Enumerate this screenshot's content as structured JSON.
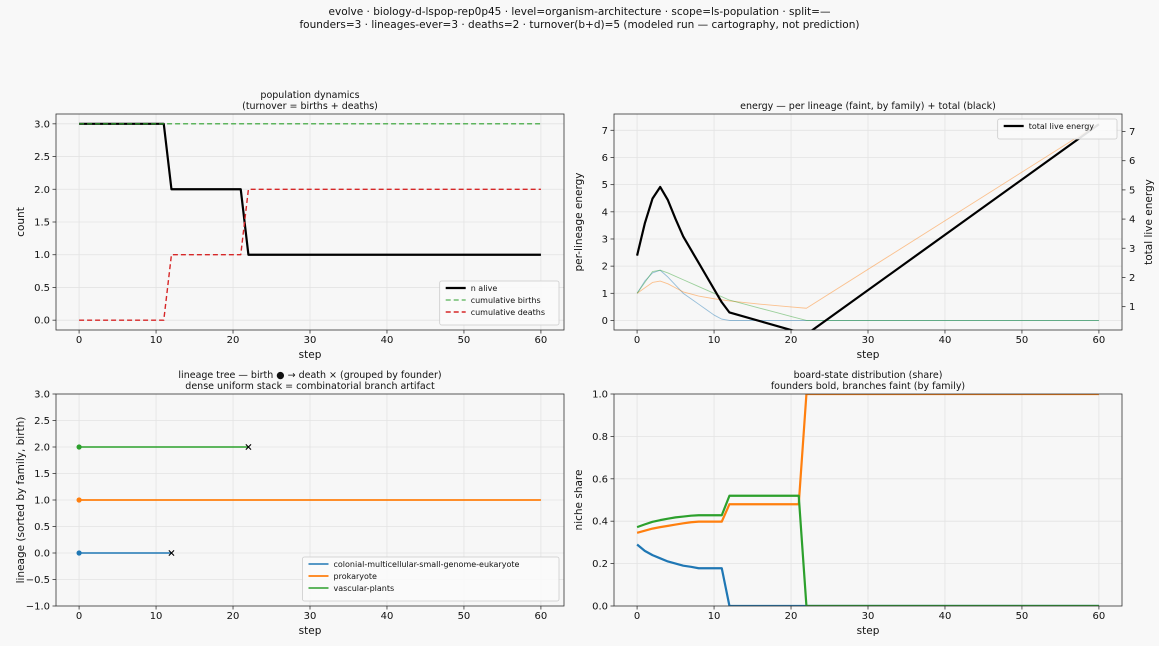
{
  "suptitle": {
    "line1": "evolve · biology-d-lspop-rep0p45 · level=organism-architecture · scope=ls-population · split=—",
    "line2": "founders=3 · lineages-ever=3 · deaths=2 · turnover(b+d)=5   (modeled run — cartography, not prediction)"
  },
  "colors": {
    "blue": "#1f77b4",
    "orange": "#ff7f0e",
    "green": "#2ca02c",
    "red": "#d62728",
    "black": "#000000"
  },
  "chart_data": [
    {
      "id": "population",
      "type": "line",
      "title": [
        "population dynamics",
        "(turnover = births + deaths)"
      ],
      "xlabel": "step",
      "ylabel": "count",
      "xlim": [
        -3,
        63
      ],
      "ylim": [
        -0.15,
        3.15
      ],
      "xticks": [
        0,
        10,
        20,
        30,
        40,
        50,
        60
      ],
      "yticks": [
        0.0,
        0.5,
        1.0,
        1.5,
        2.0,
        2.5,
        3.0
      ],
      "ytick_labels": [
        "0.0",
        "0.5",
        "1.0",
        "1.5",
        "2.0",
        "2.5",
        "3.0"
      ],
      "grid": true,
      "legend": "lower-right",
      "series": [
        {
          "name": "n alive",
          "color": "#000000",
          "style": "solid",
          "width": 2.2,
          "x": [
            0,
            11,
            12,
            21,
            22,
            60
          ],
          "y": [
            3,
            3,
            2,
            2,
            1,
            1
          ]
        },
        {
          "name": "cumulative births",
          "color": "#2ca02c",
          "style": "dashed",
          "width": 1.1,
          "x": [
            0,
            60
          ],
          "y": [
            3,
            3
          ]
        },
        {
          "name": "cumulative deaths",
          "color": "#d62728",
          "style": "dashed",
          "width": 1.4,
          "x": [
            0,
            11,
            12,
            21,
            22,
            60
          ],
          "y": [
            0,
            0,
            1,
            1,
            2,
            2
          ]
        }
      ]
    },
    {
      "id": "energy",
      "type": "line",
      "title": [
        "energy — per lineage (faint, by family) + total (black)"
      ],
      "xlabel": "step",
      "ylabel": "per-lineage energy",
      "ylabel_right": "total live energy",
      "xlim": [
        -3,
        63
      ],
      "ylim": [
        -0.35,
        7.6
      ],
      "xticks": [
        0,
        10,
        20,
        30,
        40,
        50,
        60
      ],
      "yticks": [
        0,
        1,
        2,
        3,
        4,
        5,
        6,
        7
      ],
      "ytick_labels": [
        "0",
        "1",
        "2",
        "3",
        "4",
        "5",
        "6",
        "7"
      ],
      "ylim_right": [
        0.2,
        7.6
      ],
      "yticks_right": [
        1,
        2,
        3,
        4,
        5,
        6,
        7
      ],
      "ytick_labels_right": [
        "1",
        "2",
        "3",
        "4",
        "5",
        "6",
        "7"
      ],
      "grid": true,
      "legend": "upper-right",
      "series": [
        {
          "family": "colonial-multicellular-small-genome-eukaryote",
          "color": "#1f77b4",
          "faint": true,
          "x": [
            0,
            1,
            2,
            3,
            4,
            5,
            6,
            7,
            8,
            9,
            10,
            11,
            12,
            60
          ],
          "y": [
            1.0,
            1.45,
            1.75,
            1.85,
            1.6,
            1.3,
            1.0,
            0.8,
            0.6,
            0.4,
            0.2,
            0.05,
            0.0,
            0.0
          ]
        },
        {
          "family": "prokaryote",
          "color": "#ff7f0e",
          "faint": true,
          "x": [
            0,
            1,
            2,
            3,
            4,
            5,
            6,
            8,
            10,
            12,
            16,
            20,
            22,
            60
          ],
          "y": [
            1.0,
            1.2,
            1.4,
            1.45,
            1.35,
            1.2,
            1.05,
            0.9,
            0.8,
            0.72,
            0.6,
            0.5,
            0.45,
            7.25
          ]
        },
        {
          "family": "vascular-plants",
          "color": "#2ca02c",
          "faint": true,
          "x": [
            0,
            1,
            2,
            3,
            4,
            6,
            8,
            10,
            12,
            14,
            16,
            18,
            20,
            22,
            60
          ],
          "y": [
            1.0,
            1.4,
            1.8,
            1.85,
            1.75,
            1.5,
            1.25,
            1.0,
            0.75,
            0.6,
            0.45,
            0.3,
            0.15,
            0.0,
            0.0
          ]
        },
        {
          "name": "total live energy",
          "color": "#000000",
          "width": 2.2,
          "axis": "right",
          "x": [
            0,
            1,
            2,
            3,
            4,
            5,
            6,
            7,
            8,
            9,
            10,
            11,
            12,
            22,
            60
          ],
          "y": [
            2.75,
            3.85,
            4.7,
            5.1,
            4.65,
            4.0,
            3.4,
            2.95,
            2.5,
            2.05,
            1.6,
            1.15,
            0.8,
            0.05,
            7.25
          ]
        }
      ]
    },
    {
      "id": "lineage-tree",
      "type": "line",
      "title": [
        "lineage tree — birth ● → death ×  (grouped by founder)",
        "dense uniform stack = combinatorial branch artifact"
      ],
      "xlabel": "step",
      "ylabel": "lineage (sorted by family, birth)",
      "xlim": [
        -3,
        63
      ],
      "ylim": [
        -1.0,
        3.0
      ],
      "xticks": [
        0,
        10,
        20,
        30,
        40,
        50,
        60
      ],
      "yticks": [
        -1.0,
        -0.5,
        0.0,
        0.5,
        1.0,
        1.5,
        2.0,
        2.5,
        3.0
      ],
      "ytick_labels": [
        "−1.0",
        "−0.5",
        "0.0",
        "0.5",
        "1.0",
        "1.5",
        "2.0",
        "2.5",
        "3.0"
      ],
      "grid": true,
      "legend": "lower-right",
      "series": [
        {
          "name": "colonial-multicellular-small-genome-eukaryote",
          "color": "#1f77b4",
          "width": 1.5,
          "x": [
            0,
            12
          ],
          "y": [
            0,
            0
          ],
          "birth": true,
          "death": true
        },
        {
          "name": "prokaryote",
          "color": "#ff7f0e",
          "width": 1.8,
          "x": [
            0,
            60
          ],
          "y": [
            1,
            1
          ],
          "birth": true,
          "death": false
        },
        {
          "name": "vascular-plants",
          "color": "#2ca02c",
          "width": 1.5,
          "x": [
            0,
            22
          ],
          "y": [
            2,
            2
          ],
          "birth": true,
          "death": true
        }
      ]
    },
    {
      "id": "board-state",
      "type": "line",
      "title": [
        "board-state distribution (share)",
        "founders bold, branches faint (by family)"
      ],
      "xlabel": "step",
      "ylabel": "niche share",
      "xlim": [
        -3,
        63
      ],
      "ylim": [
        0.0,
        1.0
      ],
      "xticks": [
        0,
        10,
        20,
        30,
        40,
        50,
        60
      ],
      "yticks": [
        0.0,
        0.2,
        0.4,
        0.6,
        0.8,
        1.0
      ],
      "ytick_labels": [
        "0.0",
        "0.2",
        "0.4",
        "0.6",
        "0.8",
        "1.0"
      ],
      "grid": true,
      "series": [
        {
          "family": "colonial-multicellular-small-genome-eukaryote",
          "color": "#1f77b4",
          "width": 2.2,
          "x": [
            0,
            1,
            2,
            3,
            4,
            5,
            6,
            7,
            8,
            9,
            10,
            11,
            12,
            60
          ],
          "y": [
            0.29,
            0.26,
            0.24,
            0.225,
            0.21,
            0.2,
            0.19,
            0.185,
            0.178,
            0.178,
            0.178,
            0.178,
            0.0,
            0.0
          ]
        },
        {
          "family": "prokaryote",
          "color": "#ff7f0e",
          "width": 2.2,
          "x": [
            0,
            1,
            2,
            3,
            4,
            5,
            6,
            7,
            8,
            9,
            10,
            11,
            12,
            21,
            22,
            60
          ],
          "y": [
            0.345,
            0.355,
            0.365,
            0.372,
            0.378,
            0.384,
            0.39,
            0.395,
            0.398,
            0.398,
            0.398,
            0.398,
            0.48,
            0.48,
            1.0,
            1.0
          ]
        },
        {
          "family": "vascular-plants",
          "color": "#2ca02c",
          "width": 2.2,
          "x": [
            0,
            1,
            2,
            3,
            4,
            5,
            6,
            7,
            8,
            9,
            10,
            11,
            12,
            21,
            22,
            60
          ],
          "y": [
            0.372,
            0.385,
            0.397,
            0.405,
            0.412,
            0.418,
            0.422,
            0.426,
            0.428,
            0.428,
            0.428,
            0.428,
            0.52,
            0.52,
            0.0,
            0.0
          ]
        }
      ]
    }
  ]
}
